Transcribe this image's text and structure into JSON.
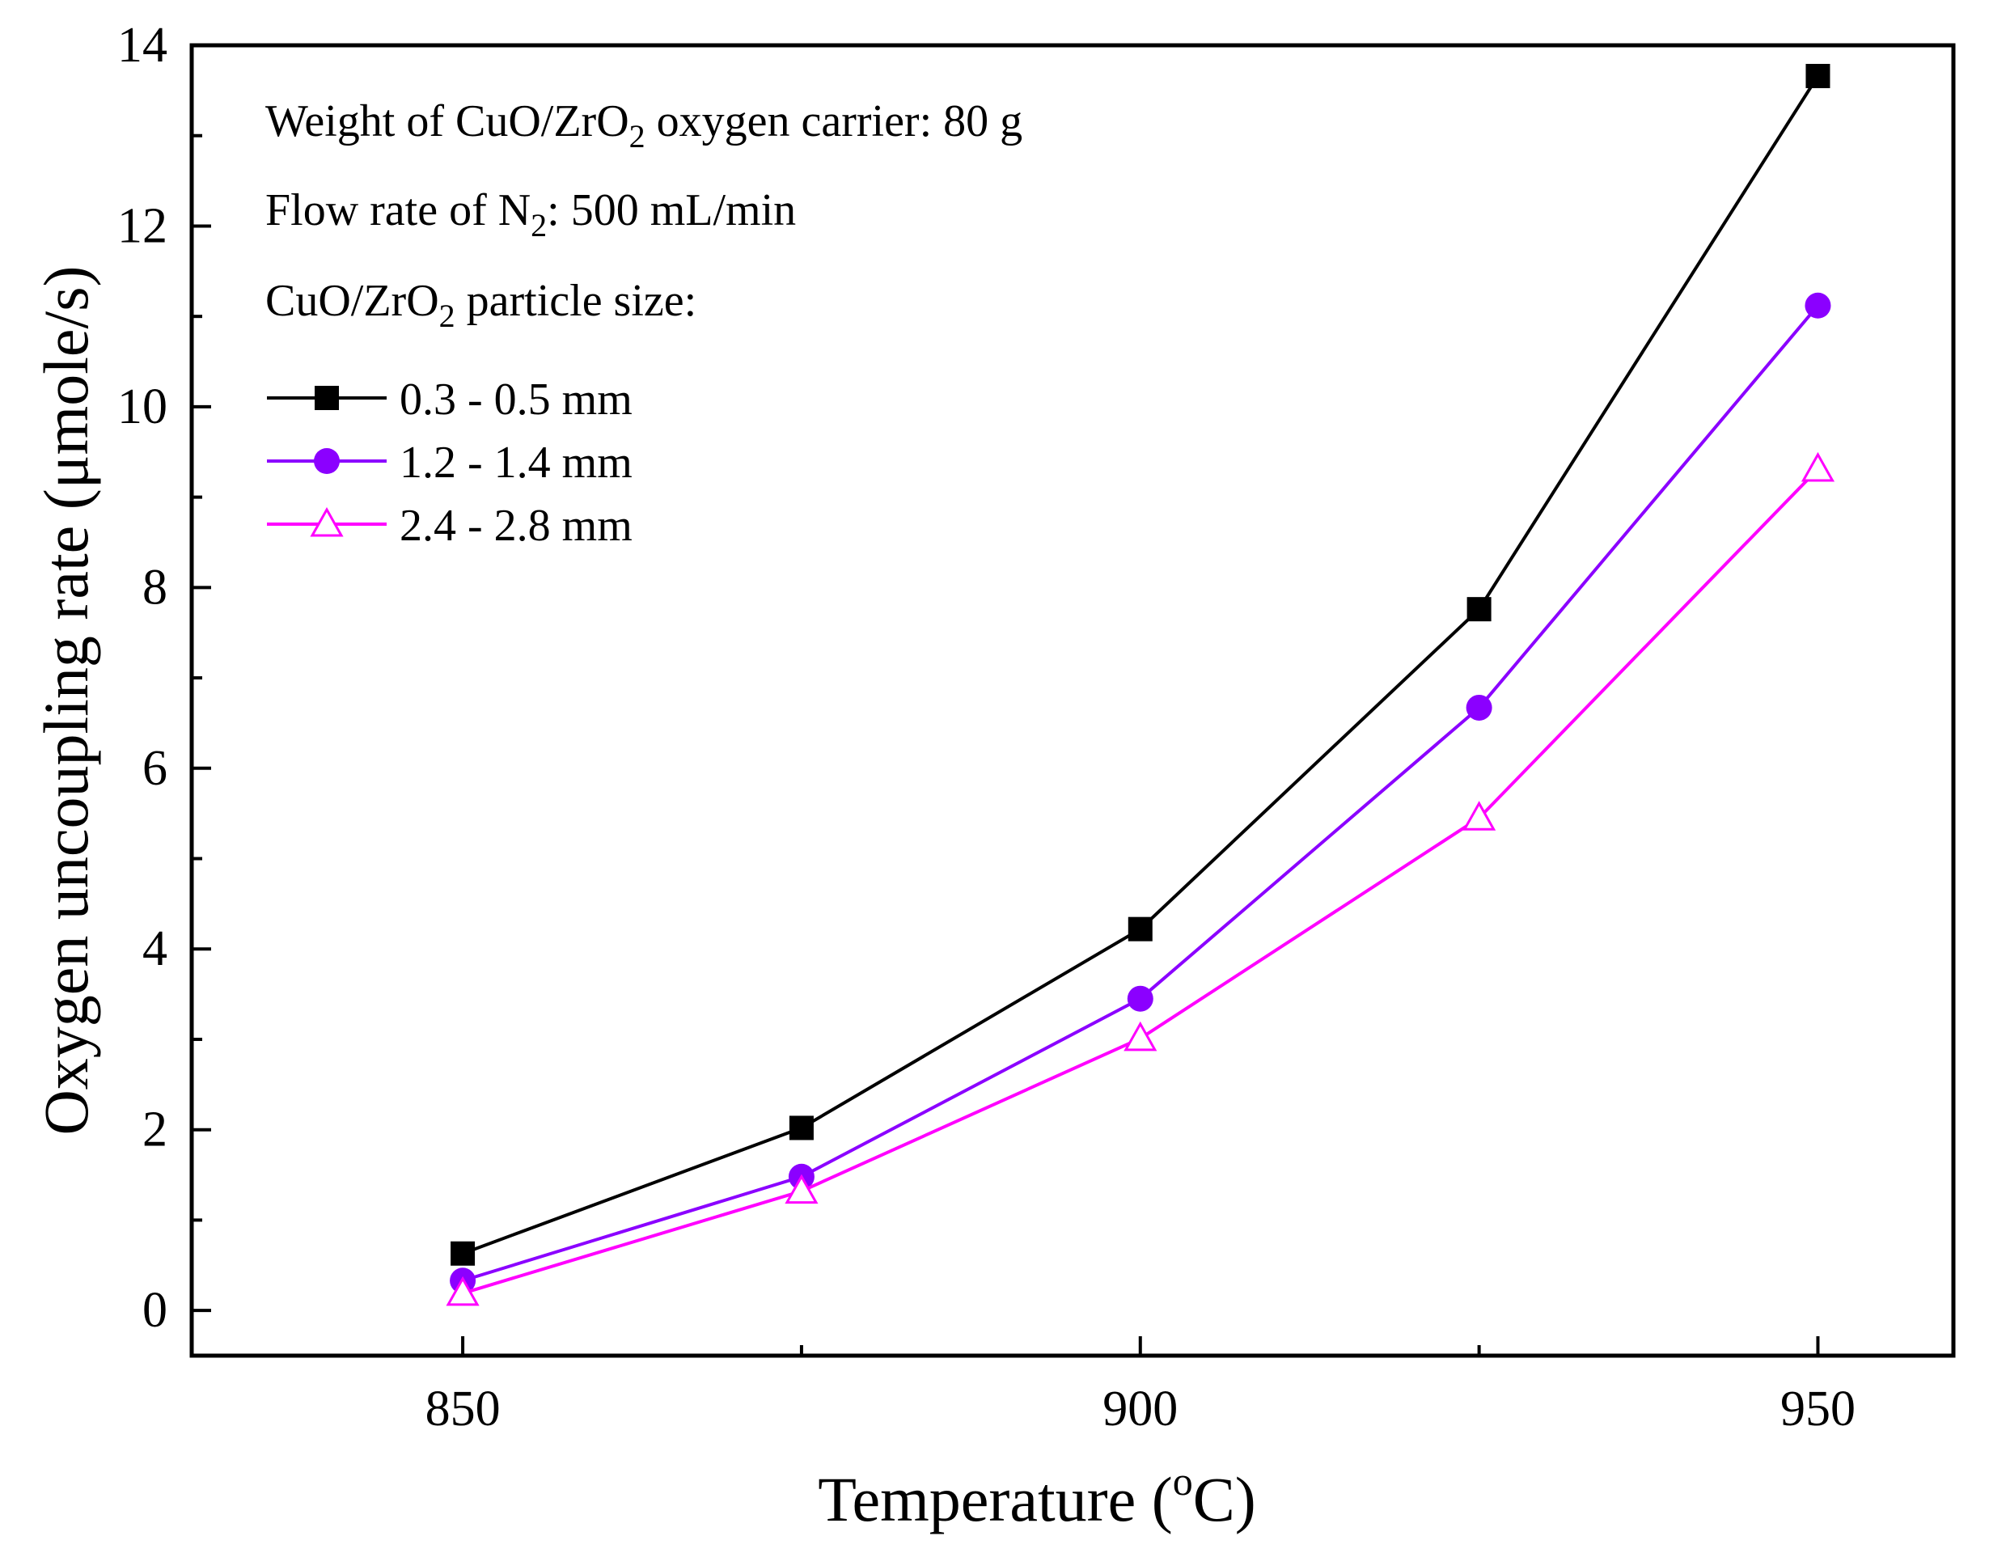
{
  "chart_data": {
    "type": "line",
    "xlabel": "Temperature (",
    "xlabel_sup": "o",
    "xlabel_end": "C)",
    "ylabel": "Oxygen uncoupling rate (μmole/s)",
    "xlim": [
      830,
      960
    ],
    "ylim": [
      -0.5,
      14
    ],
    "x_ticks": [
      850,
      900,
      950
    ],
    "x_minor_ticks": [
      875,
      925
    ],
    "y_ticks": [
      0,
      2,
      4,
      6,
      8,
      10,
      12,
      14
    ],
    "y_minor_ticks": [
      1,
      3,
      5,
      7,
      9,
      11,
      13
    ],
    "x": [
      850,
      875,
      900,
      925,
      950
    ],
    "series": [
      {
        "name": "0.3 - 0.5 mm",
        "values": [
          0.63,
          2.02,
          4.22,
          7.76,
          13.66
        ],
        "color": "#000000",
        "marker": "square-filled"
      },
      {
        "name": "1.2 - 1.4 mm",
        "values": [
          0.33,
          1.48,
          3.45,
          6.67,
          11.12
        ],
        "color": "#8b00ff",
        "marker": "circle-filled"
      },
      {
        "name": "2.4 - 2.8 mm",
        "values": [
          0.19,
          1.32,
          3.01,
          5.45,
          9.31
        ],
        "color": "#ff00ff",
        "marker": "triangle-open"
      }
    ],
    "annotations": {
      "weight": {
        "pre": "Weight of CuO/ZrO",
        "sub": "2",
        "post": " oxygen carrier: 80 g"
      },
      "flow": {
        "pre": "Flow rate of N",
        "sub": "2",
        "post": ": 500 mL/min"
      },
      "size": {
        "pre": "CuO/ZrO",
        "sub": "2",
        "post": " particle size:"
      }
    },
    "legend_placement": "top-left"
  }
}
